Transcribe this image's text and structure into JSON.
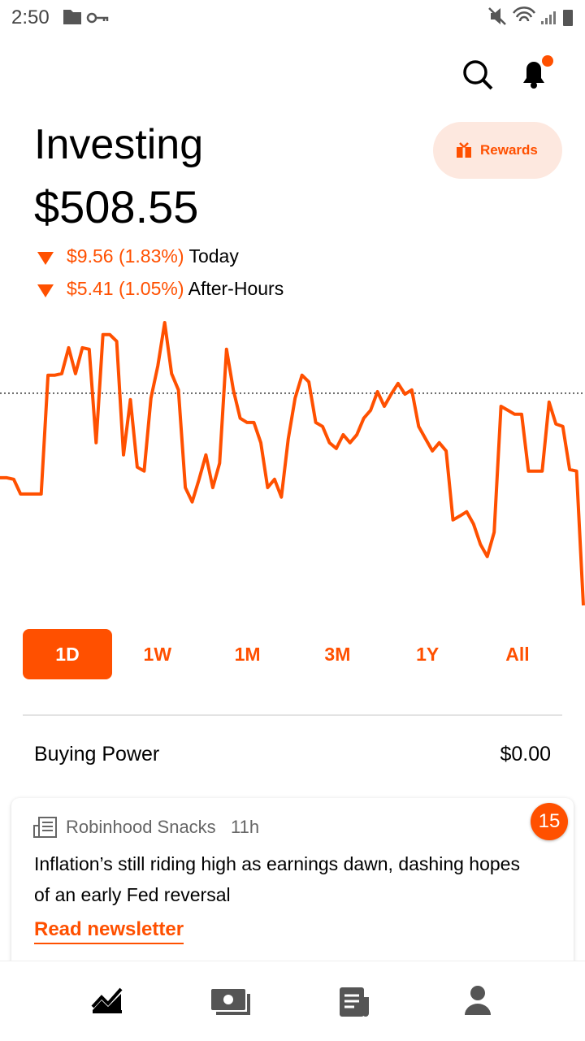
{
  "status_bar": {
    "time": "2:50"
  },
  "header": {
    "title": "Investing",
    "portfolio_value": "$508.55",
    "rewards_button": "Rewards"
  },
  "changes": [
    {
      "amount": "$9.56 (1.83%)",
      "label": "Today"
    },
    {
      "amount": "$5.41 (1.05%)",
      "label": "After-Hours"
    }
  ],
  "chart": {
    "type": "line",
    "color": "#ff5000",
    "reference_value": 518.11,
    "values": [
      514.3,
      514.3,
      514.23,
      513.57,
      513.57,
      513.57,
      513.57,
      518.92,
      518.92,
      518.99,
      520.16,
      518.99,
      520.16,
      520.09,
      515.88,
      520.75,
      520.75,
      520.45,
      515.33,
      517.82,
      514.78,
      514.6,
      517.89,
      519.35,
      521.29,
      518.99,
      518.26,
      513.86,
      513.21,
      514.23,
      515.33,
      513.86,
      514.96,
      520.09,
      518.26,
      516.98,
      516.79,
      516.79,
      515.88,
      513.86,
      514.23,
      513.43,
      516.06,
      517.89,
      518.92,
      518.62,
      516.79,
      516.61,
      515.88,
      515.62,
      516.24,
      515.88,
      516.24,
      516.98,
      517.34,
      518.18,
      517.52,
      518.07,
      518.55,
      518.07,
      518.26,
      516.61,
      516.06,
      515.51,
      515.88,
      515.51,
      512.4,
      512.58,
      512.77,
      512.22,
      511.3,
      510.75,
      511.85,
      517.52,
      517.34,
      517.16,
      517.16,
      514.6,
      514.6,
      514.6,
      517.71,
      516.72,
      516.61,
      514.67,
      514.6,
      508.55
    ]
  },
  "ranges": {
    "options": [
      "1D",
      "1W",
      "1M",
      "3M",
      "1Y",
      "All"
    ],
    "selected": "1D"
  },
  "buying_power": {
    "label": "Buying Power",
    "value": "$0.00"
  },
  "news_card": {
    "source": "Robinhood Snacks",
    "time": "11h",
    "headline": "Inflation’s still riding high as earnings dawn, dashing hopes of an early Fed reversal",
    "link": "Read newsletter",
    "badge": "15"
  }
}
